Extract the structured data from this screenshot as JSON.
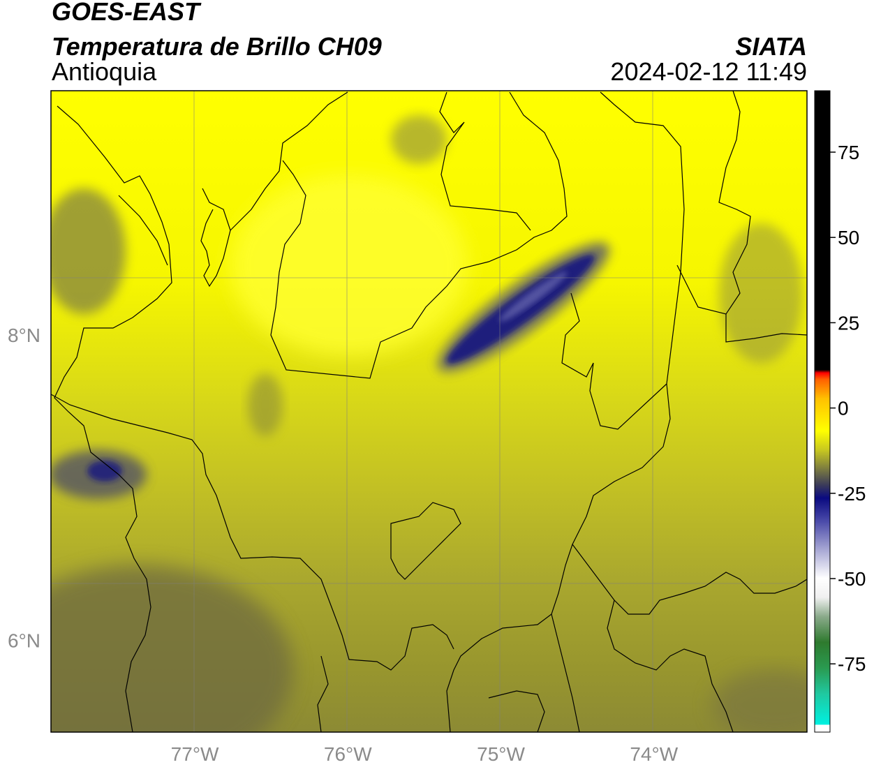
{
  "header": {
    "line1": "GOES-EAST",
    "line2": "Temperatura de Brillo CH09",
    "line3": "Antioquia",
    "org": "SIATA",
    "datetime": "2024-02-12 11:49"
  },
  "map": {
    "lon_range": [
      -77.94,
      -73.0
    ],
    "lat_range": [
      5.4,
      9.6
    ],
    "lon_ticks": [
      {
        "value": -77,
        "label": "77°W"
      },
      {
        "value": -76,
        "label": "76°W"
      },
      {
        "value": -75,
        "label": "75°W"
      },
      {
        "value": -74,
        "label": "74°W"
      }
    ],
    "lat_ticks": [
      {
        "value": 8,
        "label": "8°N"
      },
      {
        "value": 6,
        "label": "6°N"
      }
    ]
  },
  "colorbar": {
    "range": [
      -95,
      93
    ],
    "ticks": [
      {
        "value": 75,
        "label": "75"
      },
      {
        "value": 50,
        "label": "50"
      },
      {
        "value": 25,
        "label": "25"
      },
      {
        "value": 0,
        "label": "0"
      },
      {
        "value": -25,
        "label": "-25"
      },
      {
        "value": -50,
        "label": "-50"
      },
      {
        "value": -75,
        "label": "-75"
      }
    ]
  },
  "colors": {
    "warm_yellow": "#ffff00",
    "olive": "#9a9a2c",
    "dark_olive": "#6f6a3c",
    "deep_blue": "#101078",
    "black": "#000000"
  }
}
